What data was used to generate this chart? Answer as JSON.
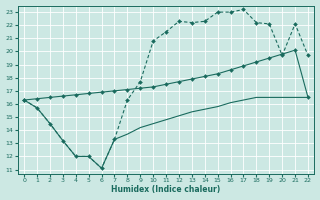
{
  "xlabel": "Humidex (Indice chaleur)",
  "bg_color": "#cce8e3",
  "line_color": "#1a6b5e",
  "grid_color": "#b8ddd7",
  "xlim": [
    -0.5,
    22.5
  ],
  "ylim": [
    10.7,
    23.5
  ],
  "xticks": [
    0,
    1,
    2,
    3,
    4,
    5,
    6,
    7,
    8,
    9,
    10,
    11,
    12,
    13,
    14,
    15,
    16,
    17,
    18,
    19,
    20,
    21,
    22
  ],
  "yticks": [
    11,
    12,
    13,
    14,
    15,
    16,
    17,
    18,
    19,
    20,
    21,
    22,
    23
  ],
  "curve1_x": [
    0,
    1,
    2,
    3,
    4,
    5,
    6,
    7,
    8,
    9,
    10,
    11,
    12,
    13,
    14,
    15,
    16,
    17,
    18,
    19,
    20,
    21,
    22
  ],
  "curve1_y": [
    16.3,
    15.7,
    14.5,
    13.2,
    12.0,
    12.0,
    11.1,
    13.3,
    16.3,
    17.7,
    20.8,
    21.5,
    22.3,
    22.2,
    22.3,
    23.0,
    23.0,
    23.2,
    22.2,
    22.1,
    19.7,
    22.1,
    19.7
  ],
  "curve2_x": [
    0,
    1,
    2,
    3,
    4,
    5,
    6,
    7,
    8,
    9,
    10,
    11,
    12,
    13,
    14,
    15,
    16,
    17,
    18,
    19,
    20,
    21,
    22
  ],
  "curve2_y": [
    16.3,
    16.4,
    16.5,
    16.6,
    16.7,
    16.8,
    16.9,
    17.0,
    17.1,
    17.2,
    17.3,
    17.5,
    17.7,
    17.9,
    18.1,
    18.3,
    18.6,
    18.9,
    19.2,
    19.5,
    19.8,
    20.1,
    16.5
  ],
  "curve3_x": [
    0,
    1,
    2,
    3,
    4,
    5,
    6,
    7,
    8,
    9,
    10,
    11,
    12,
    13,
    14,
    15,
    16,
    17,
    18,
    19,
    20,
    21,
    22
  ],
  "curve3_y": [
    16.3,
    15.7,
    14.5,
    13.2,
    12.0,
    12.0,
    11.1,
    13.3,
    13.7,
    14.2,
    14.5,
    14.8,
    15.1,
    15.4,
    15.6,
    15.8,
    16.1,
    16.3,
    16.5,
    16.5,
    16.5,
    16.5,
    16.5
  ]
}
